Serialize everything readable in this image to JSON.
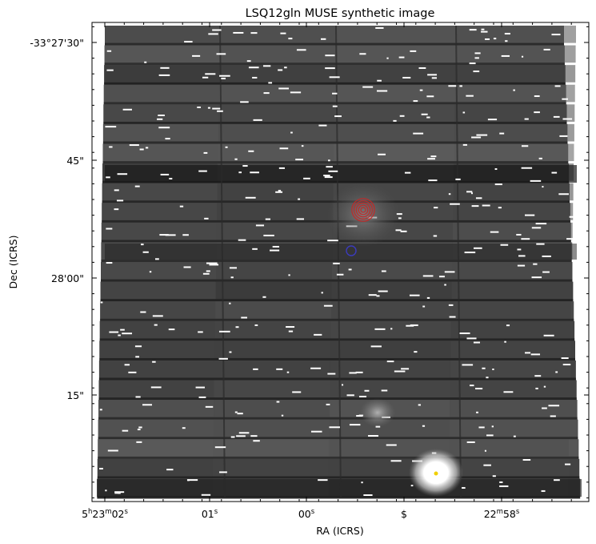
{
  "title": "LSQ12gln MUSE synthetic image",
  "xlabel": "RA (ICRS)",
  "ylabel": "Dec (ICRS)",
  "x_ticks": [
    {
      "main": "5",
      "sup1": "h",
      "mid": "23",
      "sup2": "m",
      "end": "02",
      "sup3": "s",
      "ra_sec": 2
    },
    {
      "main": "01",
      "sup1": "s",
      "ra_sec": 1
    },
    {
      "main": "00",
      "sup1": "s",
      "ra_sec": 0
    },
    {
      "main": "$",
      "ra_sec": -1
    },
    {
      "main": "22",
      "sup1": "m",
      "end": "58",
      "sup3": "s",
      "ra_sec": -2
    }
  ],
  "y_ticks": [
    {
      "label": "-33°27'30\"",
      "dec_arcsec": -30
    },
    {
      "label": "45\"",
      "dec_arcsec": -45
    },
    {
      "label": "28'00\"",
      "dec_arcsec": -60
    },
    {
      "label": "15\"",
      "dec_arcsec": -75
    }
  ],
  "markers": {
    "host_galaxy": {
      "color": "#cc2222",
      "ra_sec": -0.55,
      "dec_arcsec": -51.2,
      "rings": 5
    },
    "sn_position": {
      "color": "#3b3bbd",
      "ra_sec": -0.4,
      "dec_arcsec": -56.5
    },
    "bright_star": {
      "color": "#f0d000",
      "ra_sec": -1.9,
      "dec_arcsec": -84.8
    },
    "faint_source": {
      "ra_sec": -0.9,
      "dec_arcsec": -77.2
    }
  },
  "colors": {
    "image_background": "#4a4a4a",
    "image_dark": "#1a1a1a",
    "artifact": "#ffffff"
  }
}
